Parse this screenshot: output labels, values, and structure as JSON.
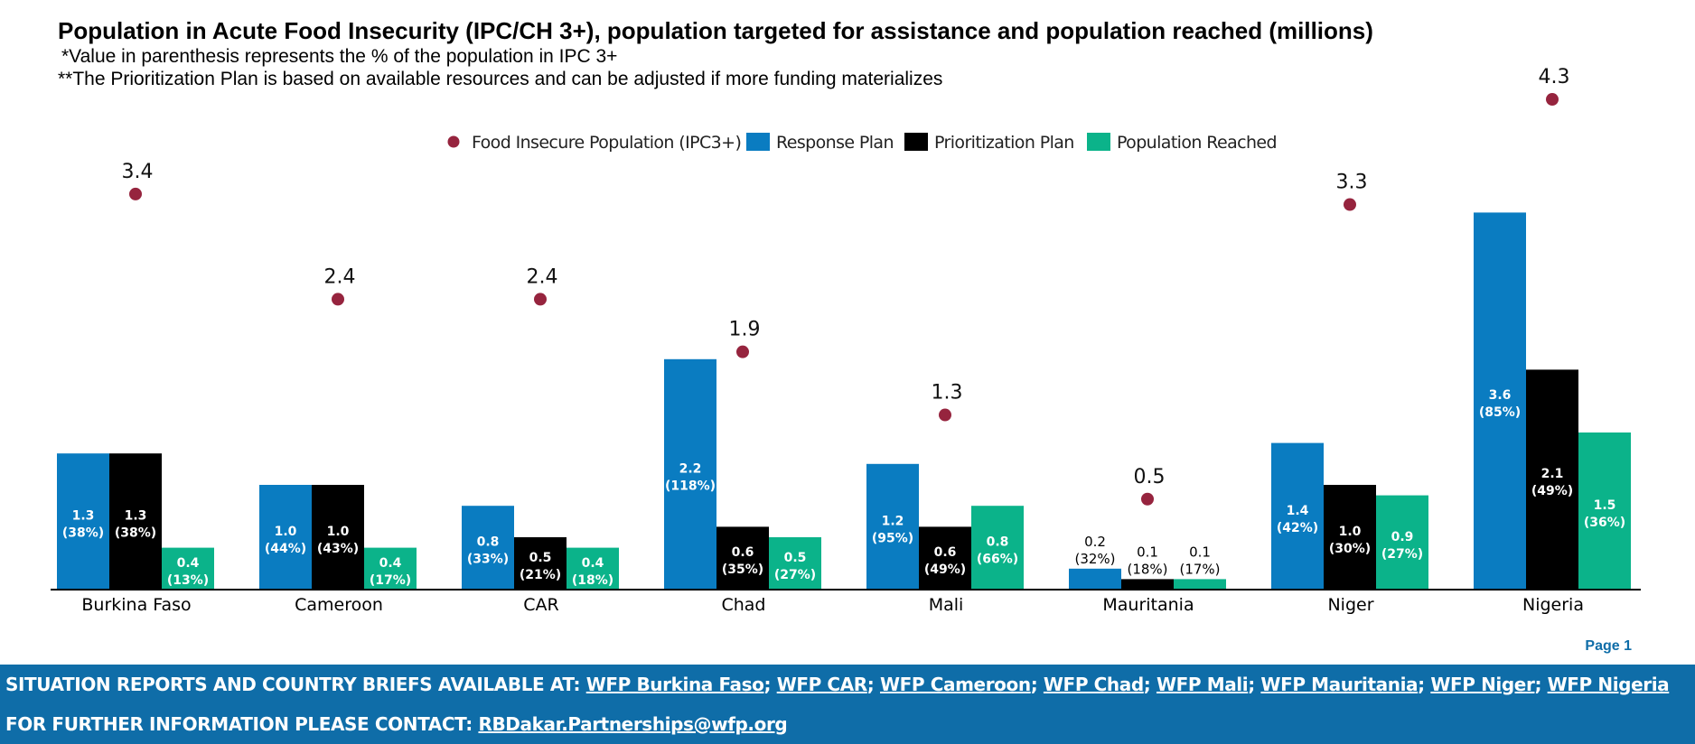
{
  "header": {
    "title": "Population in Acute Food Insecurity (IPC/CH 3+), population targeted for assistance and population reached (millions)",
    "note1": "*Value in parenthesis represents the % of the population in IPC 3+",
    "note2": "**The Prioritization Plan is based on available resources and can be adjusted if more funding materializes"
  },
  "colors": {
    "food_insecure": "#96243e",
    "response_plan": "#0a7cc1",
    "prioritization_plan": "#000000",
    "population_reached": "#0bb38a",
    "footer_bg": "#0f6da8",
    "page_label": "#0f6da8"
  },
  "chart_data": {
    "type": "bar",
    "title": "Population in Acute Food Insecurity (IPC/CH 3+), population targeted for assistance and population reached (millions)",
    "ylabel": "",
    "xlabel": "",
    "ylim": [
      0,
      4.5
    ],
    "grid": false,
    "legend_position": "top-center",
    "categories": [
      "Burkina Faso",
      "Cameroon",
      "CAR",
      "Chad",
      "Mali",
      "Mauritania",
      "Niger",
      "Nigeria"
    ],
    "markers": {
      "name": "Food Insecure Population (IPC3+)",
      "values": [
        3.4,
        2.4,
        2.4,
        1.9,
        1.3,
        0.5,
        3.3,
        4.3
      ],
      "labels": [
        "3.4",
        "2.4",
        "2.4",
        "1.9",
        "1.3",
        "0.5",
        "3.3",
        "4.3"
      ]
    },
    "series": [
      {
        "name": "Response Plan",
        "values": [
          1.3,
          1.0,
          0.8,
          2.2,
          1.2,
          0.2,
          1.4,
          3.6
        ],
        "labels": [
          "1.3",
          "1.0",
          "0.8",
          "2.2",
          "1.2",
          "0.2",
          "1.4",
          "3.6"
        ],
        "pct": [
          "(38%)",
          "(44%)",
          "(33%)",
          "(118%)",
          "(95%)",
          "(32%)",
          "(42%)",
          "(85%)"
        ]
      },
      {
        "name": "Prioritization Plan",
        "values": [
          1.3,
          1.0,
          0.5,
          0.6,
          0.6,
          0.1,
          1.0,
          2.1
        ],
        "labels": [
          "1.3",
          "1.0",
          "0.5",
          "0.6",
          "0.6",
          "0.1",
          "1.0",
          "2.1"
        ],
        "pct": [
          "(38%)",
          "(43%)",
          "(21%)",
          "(35%)",
          "(49%)",
          "(18%)",
          "(30%)",
          "(49%)"
        ]
      },
      {
        "name": "Population Reached",
        "values": [
          0.4,
          0.4,
          0.4,
          0.5,
          0.8,
          0.1,
          0.9,
          1.5
        ],
        "labels": [
          "0.4",
          "0.4",
          "0.4",
          "0.5",
          "0.8",
          "0.1",
          "0.9",
          "1.5"
        ],
        "pct": [
          "(13%)",
          "(17%)",
          "(18%)",
          "(27%)",
          "(66%)",
          "(17%)",
          "(27%)",
          "(36%)"
        ]
      }
    ]
  },
  "page_label": "Page 1",
  "footer": {
    "reports_label": "SITUATION REPORTS AND COUNTRY BRIEFS AVAILABLE AT: ",
    "links": [
      "WFP Burkina Faso",
      "WFP CAR",
      "WFP Cameroon",
      "WFP Chad",
      "WFP Mali",
      "WFP Mauritania",
      "WFP Niger",
      "WFP Nigeria"
    ],
    "separator": ";",
    "contact_label": "FOR FURTHER INFORMATION PLEASE CONTACT: ",
    "contact_email": "RBDakar.Partnerships@wfp.org"
  }
}
